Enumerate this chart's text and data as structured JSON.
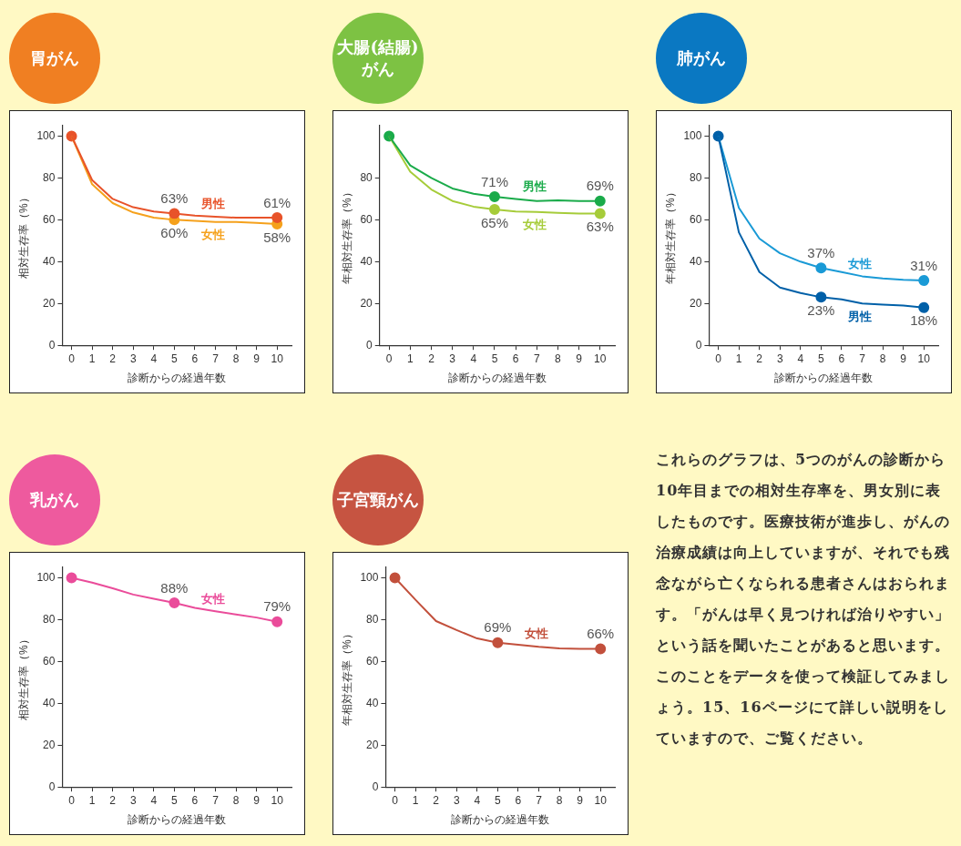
{
  "chart_data": [
    {
      "type": "line",
      "title": "胃がん",
      "xlabel": "診断からの経過年数",
      "ylabel": "相対生存率（%）",
      "x": [
        0,
        1,
        2,
        3,
        4,
        5,
        6,
        7,
        8,
        9,
        10
      ],
      "xlim": [
        -0.45,
        10.7
      ],
      "ylim": [
        0,
        105
      ],
      "xticks": [
        0,
        1,
        2,
        3,
        4,
        5,
        6,
        7,
        8,
        9,
        10
      ],
      "yticks": [
        0,
        20,
        40,
        60,
        80,
        100
      ],
      "series": [
        {
          "type": "line",
          "name": "男性",
          "color": "#e8532a",
          "marker": "none",
          "values": [
            100,
            79,
            70,
            66,
            64,
            63,
            62,
            61.5,
            61,
            61,
            61
          ]
        },
        {
          "type": "line",
          "name": "女性",
          "color": "#f5a11c",
          "marker": "none",
          "values": [
            100,
            77,
            68,
            63.5,
            61,
            60,
            59.5,
            59,
            59,
            58.5,
            58
          ]
        },
        {
          "type": "scatter",
          "color": "#e8532a",
          "marker": "circle",
          "x": [
            0,
            5,
            10
          ],
          "values": [
            100,
            63,
            61
          ],
          "value_labels": [
            null,
            "63%",
            "61%"
          ]
        },
        {
          "type": "scatter",
          "color": "#f5a11c",
          "marker": "circle",
          "x": [
            5,
            10
          ],
          "values": [
            60,
            58
          ],
          "value_labels": [
            "60%",
            "58%"
          ]
        }
      ]
    },
    {
      "type": "line",
      "title": "大腸(結腸)がん",
      "xlabel": "診断からの経過年数",
      "ylabel": "年相対生存率（%）",
      "x": [
        0,
        1,
        2,
        3,
        4,
        5,
        6,
        7,
        8,
        9,
        10
      ],
      "xlim": [
        -0.45,
        10.7
      ],
      "ylim": [
        0,
        105
      ],
      "xticks": [
        0,
        1,
        2,
        3,
        4,
        5,
        6,
        7,
        8,
        9,
        10
      ],
      "yticks": [
        0,
        20,
        40,
        60,
        80
      ],
      "series": [
        {
          "type": "line",
          "name": "男性",
          "color": "#1aab4a",
          "marker": "none",
          "values": [
            100,
            86,
            80,
            75,
            72.5,
            71,
            70,
            69,
            69.3,
            69,
            69
          ]
        },
        {
          "type": "line",
          "name": "女性",
          "color": "#a6cc3a",
          "marker": "none",
          "values": [
            100,
            83,
            74.5,
            69,
            66.3,
            65,
            64,
            63.7,
            63.3,
            63,
            63
          ]
        },
        {
          "type": "scatter",
          "color": "#1aab4a",
          "marker": "circle",
          "x": [
            0,
            5,
            10
          ],
          "values": [
            100,
            71,
            69
          ],
          "value_labels": [
            null,
            "71%",
            "69%"
          ]
        },
        {
          "type": "scatter",
          "color": "#a6cc3a",
          "marker": "circle",
          "x": [
            5,
            10
          ],
          "values": [
            65,
            63
          ],
          "value_labels": [
            "65%",
            "63%"
          ]
        }
      ]
    },
    {
      "type": "line",
      "title": "肺がん",
      "xlabel": "診断からの経過年数",
      "ylabel": "年相対生存率（%）",
      "x": [
        0,
        1,
        2,
        3,
        4,
        5,
        6,
        7,
        8,
        9,
        10
      ],
      "xlim": [
        -0.45,
        10.7
      ],
      "ylim": [
        0,
        105
      ],
      "xticks": [
        0,
        1,
        2,
        3,
        4,
        5,
        6,
        7,
        8,
        9,
        10
      ],
      "yticks": [
        0,
        20,
        40,
        60,
        80,
        100
      ],
      "series": [
        {
          "type": "line",
          "name": "男性",
          "color": "#0060a8",
          "marker": "none",
          "values": [
            100,
            54,
            35,
            27.6,
            25,
            23,
            22,
            20,
            19.5,
            19,
            18
          ]
        },
        {
          "type": "line",
          "name": "女性",
          "color": "#1a9ad6",
          "marker": "none",
          "values": [
            100,
            65.7,
            51,
            44,
            40,
            37,
            35,
            33,
            32,
            31.3,
            31
          ]
        },
        {
          "type": "scatter",
          "color": "#0060a8",
          "marker": "circle",
          "x": [
            0,
            5,
            10
          ],
          "values": [
            100,
            23,
            18
          ],
          "value_labels": [
            null,
            "23%",
            "18%"
          ]
        },
        {
          "type": "scatter",
          "color": "#1a9ad6",
          "marker": "circle",
          "x": [
            5,
            10
          ],
          "values": [
            37,
            31
          ],
          "value_labels": [
            "37%",
            "31%"
          ]
        }
      ]
    },
    {
      "type": "line",
      "title": "乳がん",
      "xlabel": "診断からの経過年数",
      "ylabel": "相対生存率（%）",
      "x": [
        0,
        1,
        2,
        3,
        4,
        5,
        6,
        7,
        8,
        9,
        10
      ],
      "xlim": [
        -0.45,
        10.7
      ],
      "ylim": [
        0,
        105
      ],
      "xticks": [
        0,
        1,
        2,
        3,
        4,
        5,
        6,
        7,
        8,
        9,
        10
      ],
      "yticks": [
        0,
        20,
        40,
        60,
        80,
        100
      ],
      "series": [
        {
          "type": "line",
          "name": "女性",
          "color": "#ea4c9a",
          "marker": "none",
          "values": [
            100,
            97.7,
            95,
            92,
            90,
            88,
            85.6,
            84,
            82.5,
            81,
            79
          ]
        },
        {
          "type": "scatter",
          "color": "#ea4c9a",
          "marker": "circle",
          "x": [
            0,
            5,
            10
          ],
          "values": [
            100,
            88,
            79
          ],
          "value_labels": [
            null,
            "88%",
            "79%"
          ]
        }
      ]
    },
    {
      "type": "line",
      "title": "子宮頸がん",
      "xlabel": "診断からの経過年数",
      "ylabel": "年相対生存率（%）",
      "x": [
        0,
        1,
        2,
        3,
        4,
        5,
        6,
        7,
        8,
        9,
        10
      ],
      "xlim": [
        -0.45,
        10.7
      ],
      "ylim": [
        0,
        105
      ],
      "xticks": [
        0,
        1,
        2,
        3,
        4,
        5,
        6,
        7,
        8,
        9,
        10
      ],
      "yticks": [
        0,
        20,
        40,
        60,
        80,
        100
      ],
      "series": [
        {
          "type": "line",
          "name": "女性",
          "color": "#c2503c",
          "marker": "none",
          "values": [
            100,
            89.5,
            79.3,
            75,
            71,
            69,
            68,
            67,
            66.3,
            66,
            66
          ]
        },
        {
          "type": "scatter",
          "color": "#c2503c",
          "marker": "circle",
          "x": [
            0,
            5,
            10
          ],
          "values": [
            100,
            69,
            66
          ],
          "value_labels": [
            null,
            "69%",
            "66%"
          ]
        }
      ]
    },
    {
      "type": "other",
      "annotations": [
        "これらのグラフは、5つのがんの診断から10年目までの相対生存率を、男女別に表したものです。医療技術が進歩し、がんの治療成績は向上していますが、それでも残念ながら亡くなられる患者さんはおられます。「がんは早く見つければ治りやすい」という話を聞いたことがあると思います。このことをデータを使って検証してみましょう。15、16ページにて詳しい説明をしていますので、ご覧ください。"
      ]
    }
  ]
}
